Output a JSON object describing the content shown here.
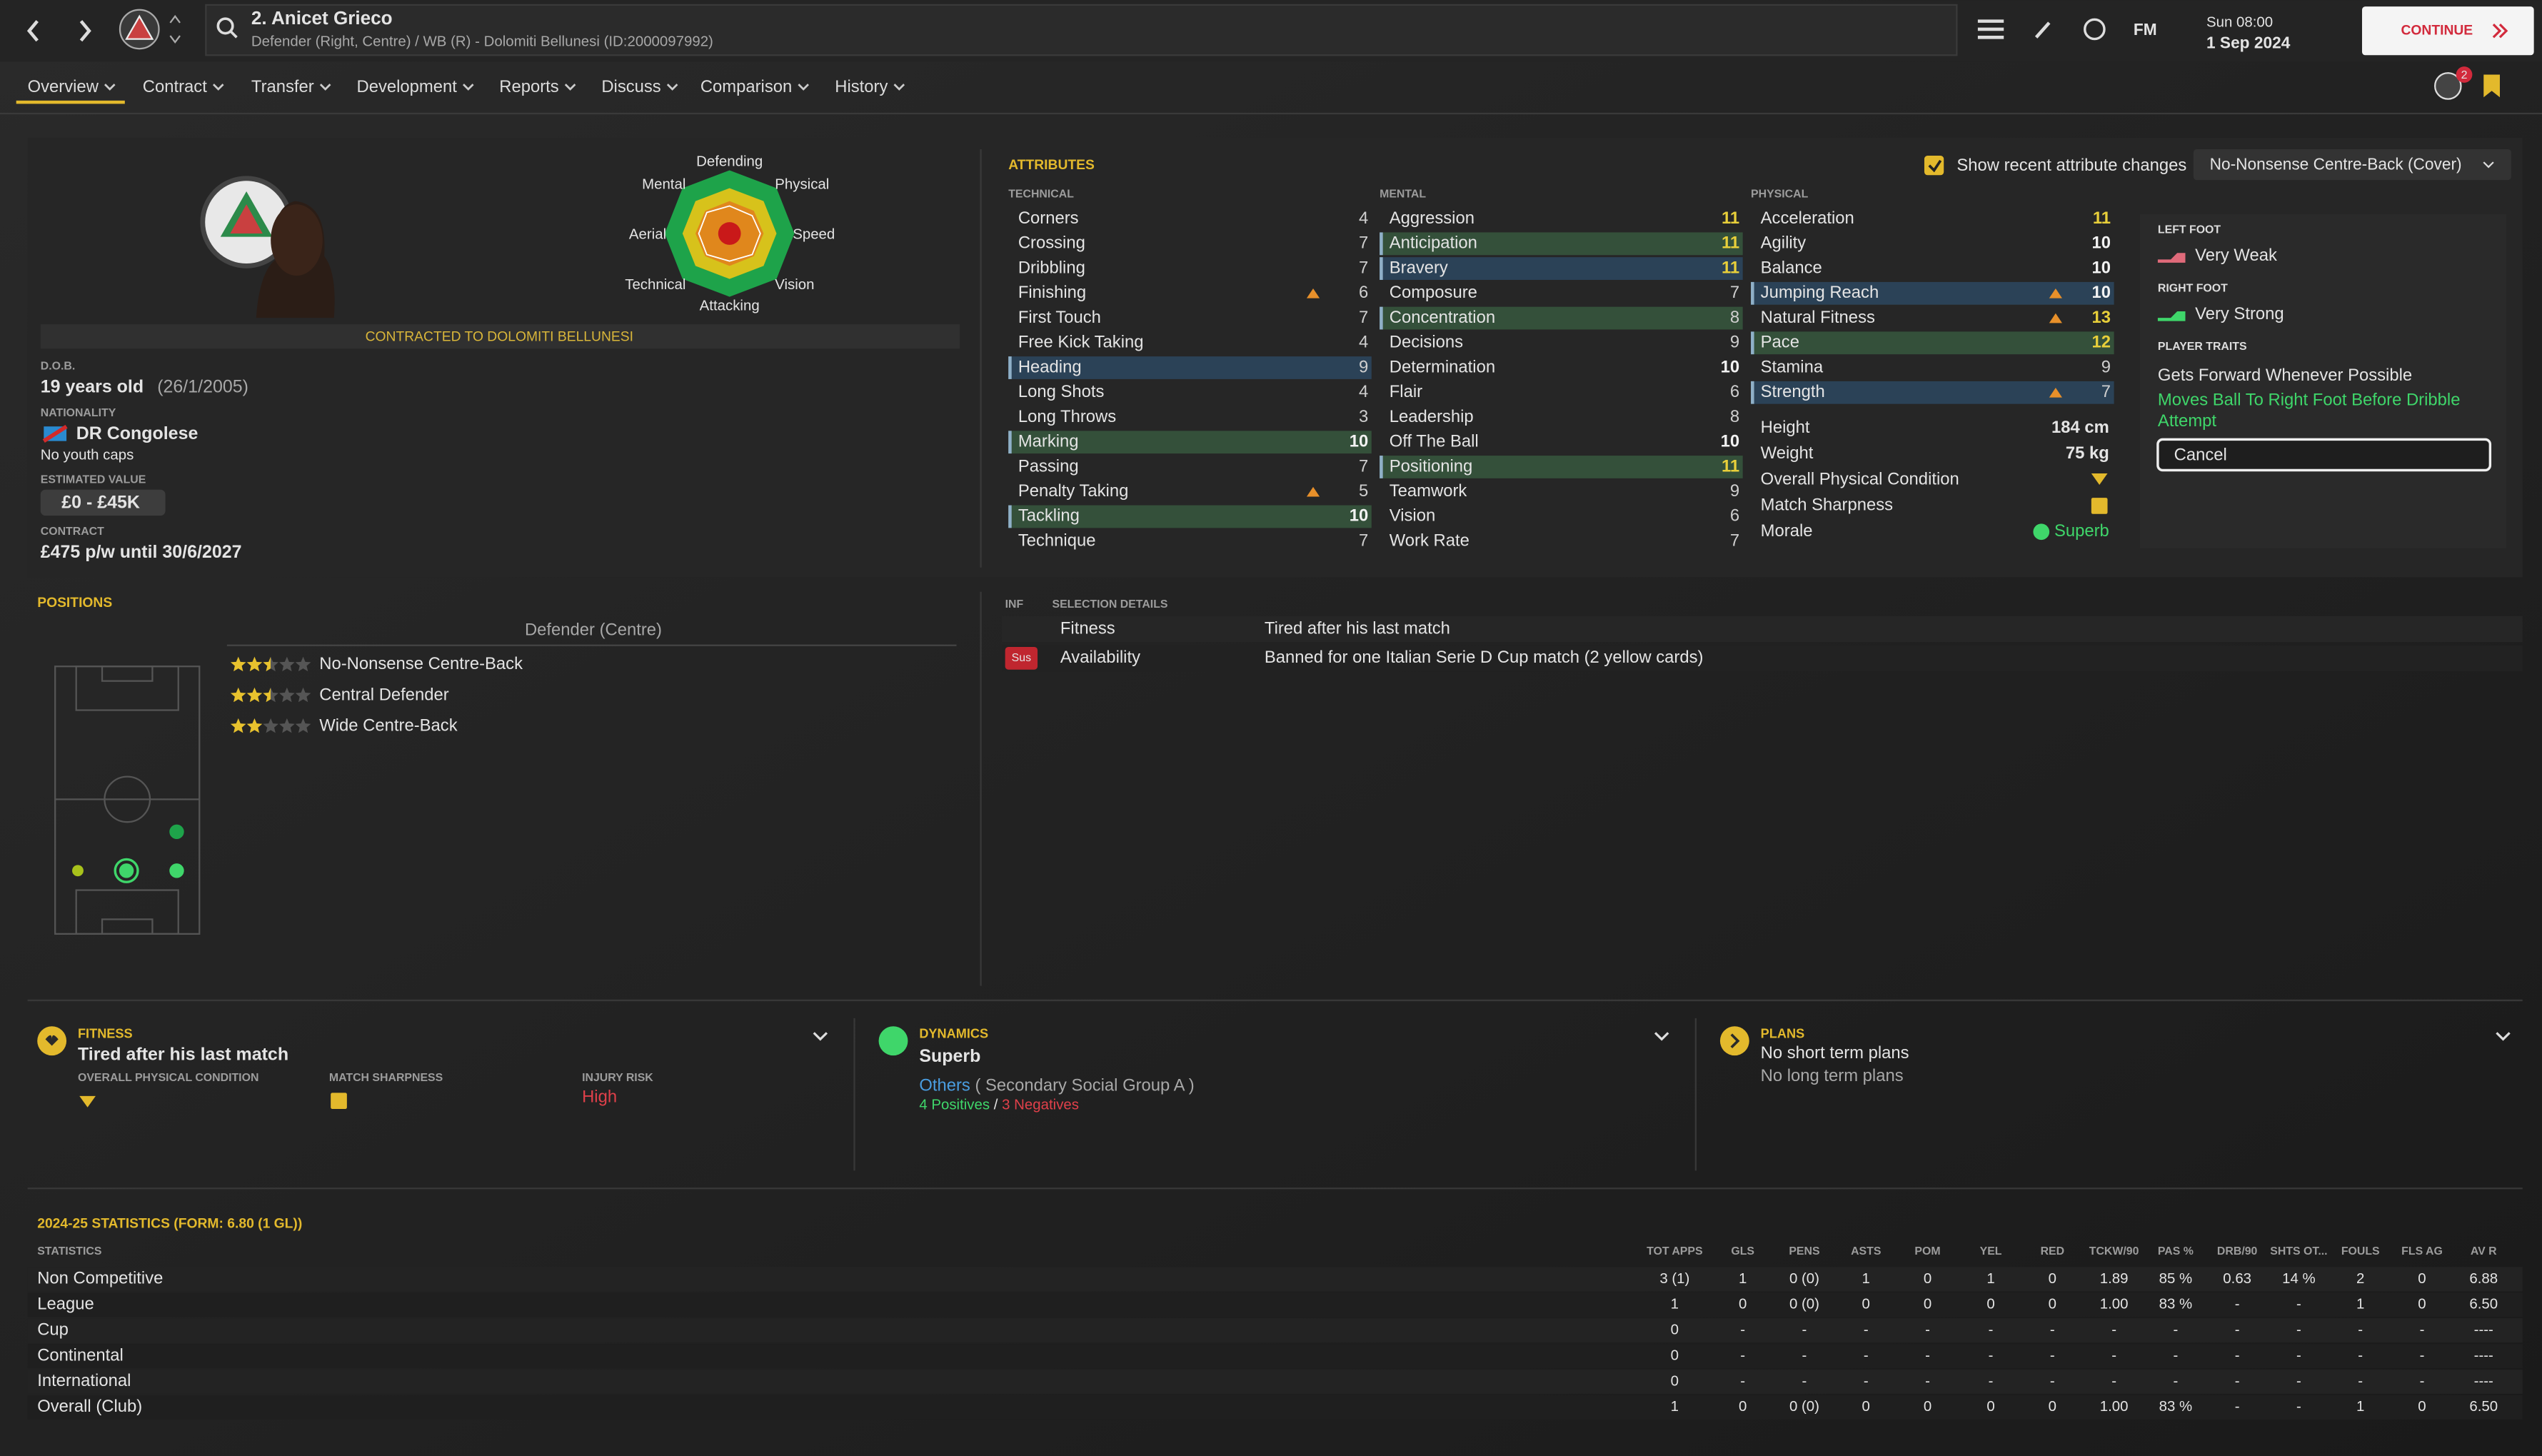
{
  "header": {
    "name": "2. Anicet Grieco",
    "subtitle": "Defender (Right, Centre) / WB (R) - Dolomiti Bellunesi (ID:2000097992)",
    "fm": "FM",
    "time": "Sun 08:00",
    "date": "1 Sep 2024",
    "continue": "CONTINUE",
    "notifications": "2",
    "tabs": [
      "Overview",
      "Contract",
      "Transfer",
      "Development",
      "Reports",
      "Discuss",
      "Comparison",
      "History"
    ]
  },
  "profile": {
    "radar_labels": [
      "Defending",
      "Physical",
      "Speed",
      "Vision",
      "Attacking",
      "Technical",
      "Aerial",
      "Mental"
    ],
    "contract_banner": "CONTRACTED TO DOLOMITI BELLUNESI",
    "dob_label": "D.O.B.",
    "dob": "19 years old",
    "dob_date": "(26/1/2005)",
    "nationality_label": "NATIONALITY",
    "nationality": "DR Congolese",
    "youth_caps": "No youth caps",
    "value_label": "ESTIMATED VALUE",
    "value": "£0 - £45K",
    "contract_label": "CONTRACT",
    "contract": "£475 p/w until 30/6/2027"
  },
  "attributes": {
    "title": "ATTRIBUTES",
    "show_changes": "Show recent attribute changes",
    "role": "No-Nonsense Centre-Back (Cover)",
    "columns": [
      {
        "heading": "TECHNICAL",
        "items": [
          {
            "name": "Corners",
            "value": 4
          },
          {
            "name": "Crossing",
            "value": 7
          },
          {
            "name": "Dribbling",
            "value": 7
          },
          {
            "name": "Finishing",
            "value": 6,
            "trend": "up"
          },
          {
            "name": "First Touch",
            "value": 7
          },
          {
            "name": "Free Kick Taking",
            "value": 4
          },
          {
            "name": "Heading",
            "value": 9,
            "highlight": "#2b4257"
          },
          {
            "name": "Long Shots",
            "value": 4
          },
          {
            "name": "Long Throws",
            "value": 3
          },
          {
            "name": "Marking",
            "value": 10,
            "highlight": "#34503a"
          },
          {
            "name": "Passing",
            "value": 7
          },
          {
            "name": "Penalty Taking",
            "value": 5,
            "trend": "up"
          },
          {
            "name": "Tackling",
            "value": 10,
            "highlight": "#34503a"
          },
          {
            "name": "Technique",
            "value": 7
          }
        ]
      },
      {
        "heading": "MENTAL",
        "items": [
          {
            "name": "Aggression",
            "value": 11
          },
          {
            "name": "Anticipation",
            "value": 11,
            "highlight": "#34503a"
          },
          {
            "name": "Bravery",
            "value": 11,
            "highlight": "#2b4257"
          },
          {
            "name": "Composure",
            "value": 7
          },
          {
            "name": "Concentration",
            "value": 8,
            "highlight": "#34503a"
          },
          {
            "name": "Decisions",
            "value": 9
          },
          {
            "name": "Determination",
            "value": 10
          },
          {
            "name": "Flair",
            "value": 6
          },
          {
            "name": "Leadership",
            "value": 8
          },
          {
            "name": "Off The Ball",
            "value": 10
          },
          {
            "name": "Positioning",
            "value": 11,
            "highlight": "#34503a"
          },
          {
            "name": "Teamwork",
            "value": 9
          },
          {
            "name": "Vision",
            "value": 6
          },
          {
            "name": "Work Rate",
            "value": 7
          }
        ]
      },
      {
        "heading": "PHYSICAL",
        "items": [
          {
            "name": "Acceleration",
            "value": 11
          },
          {
            "name": "Agility",
            "value": 10
          },
          {
            "name": "Balance",
            "value": 10
          },
          {
            "name": "Jumping Reach",
            "value": 10,
            "highlight": "#2b4257",
            "trend": "up"
          },
          {
            "name": "Natural Fitness",
            "value": 13,
            "trend": "up"
          },
          {
            "name": "Pace",
            "value": 12,
            "highlight": "#34503a"
          },
          {
            "name": "Stamina",
            "value": 9
          },
          {
            "name": "Strength",
            "value": 7,
            "highlight": "#2b4257",
            "trend": "up"
          }
        ]
      }
    ],
    "physical_info": [
      {
        "label": "Height",
        "value": "184 cm"
      },
      {
        "label": "Weight",
        "value": "75 kg"
      },
      {
        "label": "Overall Physical Condition"
      },
      {
        "label": "Match Sharpness"
      },
      {
        "label": "Morale",
        "value": "Superb"
      }
    ]
  },
  "feet": {
    "left_label": "LEFT FOOT",
    "left": "Very Weak",
    "right_label": "RIGHT FOOT",
    "right": "Very Strong",
    "traits_label": "PLAYER TRAITS",
    "traits": [
      "Gets Forward Whenever Possible",
      "Moves Ball To Right Foot Before Dribble Attempt"
    ],
    "cancel": "Cancel"
  },
  "positions": {
    "title": "POSITIONS",
    "group": "Defender (Centre)",
    "roles": [
      {
        "name": "No-Nonsense Centre-Back",
        "stars": 2.5
      },
      {
        "name": "Central Defender",
        "stars": 2.5
      },
      {
        "name": "Wide Centre-Back",
        "stars": 2
      }
    ]
  },
  "selection": {
    "inf_label": "INF",
    "title": "SELECTION DETAILS",
    "rows": [
      {
        "label": "Fitness",
        "value": "Tired after his last match"
      },
      {
        "badge": "Sus",
        "label": "Availability",
        "value": "Banned for one Italian Serie D Cup match (2 yellow cards)"
      }
    ]
  },
  "panels": {
    "fitness": {
      "title": "FITNESS",
      "status": "Tired after his last match",
      "items": [
        {
          "label": "OVERALL PHYSICAL CONDITION"
        },
        {
          "label": "MATCH SHARPNESS"
        },
        {
          "label": "INJURY RISK",
          "value": "High"
        }
      ]
    },
    "dynamics": {
      "title": "DYNAMICS",
      "status": "Superb",
      "group": "Others",
      "group_detail": "( Secondary Social Group A )",
      "positives": "4 Positives",
      "separator": "/",
      "negatives": "3 Negatives"
    },
    "plans": {
      "title": "PLANS",
      "short": "No short term plans",
      "long": "No long term plans"
    }
  },
  "stats": {
    "title": "2024-25 STATISTICS (FORM: 6.80 (1 GL))",
    "label": "STATISTICS",
    "columns": [
      "TOT APPS",
      "GLS",
      "PENS",
      "ASTS",
      "POM",
      "YEL",
      "RED",
      "TCKW/90",
      "PAS %",
      "DRB/90",
      "SHTS OT...",
      "FOULS",
      "FLS AG",
      "AV R"
    ],
    "rows": [
      {
        "name": "Non Competitive",
        "cells": [
          "3 (1)",
          "1",
          "0 (0)",
          "1",
          "0",
          "1",
          "0",
          "1.89",
          "85 %",
          "0.63",
          "14 %",
          "2",
          "0",
          "6.88"
        ]
      },
      {
        "name": "League",
        "cells": [
          "1",
          "0",
          "0 (0)",
          "0",
          "0",
          "0",
          "0",
          "1.00",
          "83 %",
          "-",
          "-",
          "1",
          "0",
          "6.50"
        ]
      },
      {
        "name": "Cup",
        "cells": [
          "0",
          "-",
          "-",
          "-",
          "-",
          "-",
          "-",
          "-",
          "-",
          "-",
          "-",
          "-",
          "-",
          "----"
        ]
      },
      {
        "name": "Continental",
        "cells": [
          "0",
          "-",
          "-",
          "-",
          "-",
          "-",
          "-",
          "-",
          "-",
          "-",
          "-",
          "-",
          "-",
          "----"
        ]
      },
      {
        "name": "International",
        "cells": [
          "0",
          "-",
          "-",
          "-",
          "-",
          "-",
          "-",
          "-",
          "-",
          "-",
          "-",
          "-",
          "-",
          "----"
        ]
      },
      {
        "name": "Overall (Club)",
        "cells": [
          "1",
          "0",
          "0 (0)",
          "0",
          "0",
          "0",
          "0",
          "1.00",
          "83 %",
          "-",
          "-",
          "1",
          "0",
          "6.50"
        ]
      }
    ]
  }
}
